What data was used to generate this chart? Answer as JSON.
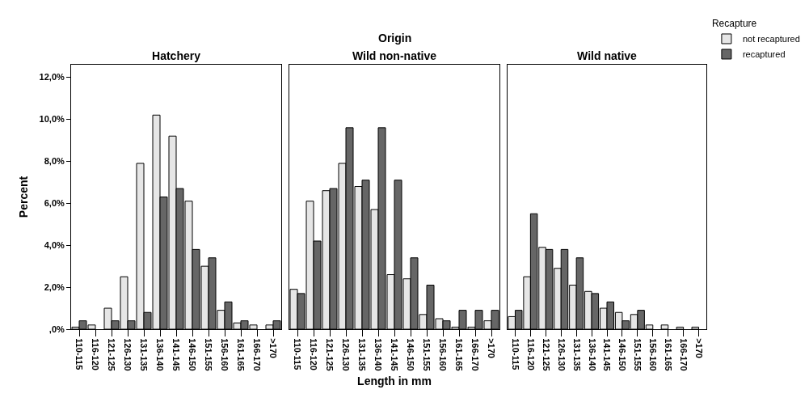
{
  "chart_data": [
    {
      "type": "bar",
      "title": "Hatchery",
      "ylabel": "Percent",
      "legend": false,
      "categories": [
        "110-115",
        "116-120",
        "121-125",
        "126-130",
        "131-135",
        "136-140",
        "141-145",
        "146-150",
        "151-155",
        "156-160",
        "161-165",
        "166-170",
        ">170"
      ],
      "series": [
        {
          "color": "#e6e6e6",
          "values": [
            0.1,
            0.2,
            1.0,
            2.5,
            7.9,
            10.2,
            9.2,
            6.1,
            3.0,
            0.9,
            0.3,
            0.2,
            0.2
          ]
        },
        {
          "color": "#666666",
          "values": [
            0.4,
            null,
            0.4,
            0.4,
            0.8,
            6.3,
            6.7,
            3.8,
            3.4,
            1.3,
            0.4,
            null,
            0.4
          ]
        }
      ],
      "ylim": [
        0,
        12.6
      ],
      "yticks": [
        {
          "value": 0,
          "label": ",0%"
        },
        {
          "value": 2,
          "label": "2,0%"
        },
        {
          "value": 4,
          "label": "4,0%"
        },
        {
          "value": 6,
          "label": "6,0%"
        },
        {
          "value": 8,
          "label": "8,0%"
        },
        {
          "value": 10,
          "label": "10,0%"
        },
        {
          "value": 12,
          "label": "12,0%"
        }
      ]
    },
    {
      "type": "bar",
      "title": "Wild non-native",
      "xlabel": "Length in mm",
      "annotations": [
        "Origin"
      ],
      "legend": false,
      "tick_labels": "x",
      "categories": [
        "110-115",
        "116-120",
        "121-125",
        "126-130",
        "131-135",
        "136-140",
        "141-145",
        "146-150",
        "151-155",
        "156-160",
        "161-165",
        "166-170",
        ">170"
      ],
      "series": [
        {
          "color": "#e6e6e6",
          "values": [
            1.9,
            6.1,
            6.6,
            7.9,
            6.8,
            5.7,
            2.6,
            2.4,
            0.7,
            0.5,
            0.1,
            0.1,
            0.4
          ]
        },
        {
          "color": "#666666",
          "values": [
            1.7,
            4.2,
            6.7,
            9.6,
            7.1,
            9.6,
            7.1,
            3.4,
            2.1,
            0.4,
            0.9,
            0.9,
            0.9
          ]
        }
      ],
      "ylim": [
        0,
        12.6
      ]
    },
    {
      "type": "bar",
      "title": "Wild native",
      "legend": "top right",
      "legend_title": "Recapture",
      "tick_labels": "x",
      "categories": [
        "110-115",
        "116-120",
        "121-125",
        "126-130",
        "131-135",
        "136-140",
        "141-145",
        "146-150",
        "151-155",
        "156-160",
        "161-165",
        "166-170",
        ">170"
      ],
      "series": [
        {
          "name": "not recaptured",
          "color": "#e6e6e6",
          "values": [
            0.6,
            2.5,
            3.9,
            2.9,
            2.1,
            1.8,
            1.0,
            0.8,
            0.7,
            0.2,
            0.2,
            0.1,
            0.1
          ]
        },
        {
          "name": "recaptured",
          "color": "#666666",
          "values": [
            0.9,
            5.5,
            3.8,
            3.8,
            3.4,
            1.7,
            1.3,
            0.4,
            0.9,
            null,
            null,
            null,
            null
          ]
        }
      ],
      "ylim": [
        0,
        12.6
      ]
    }
  ]
}
